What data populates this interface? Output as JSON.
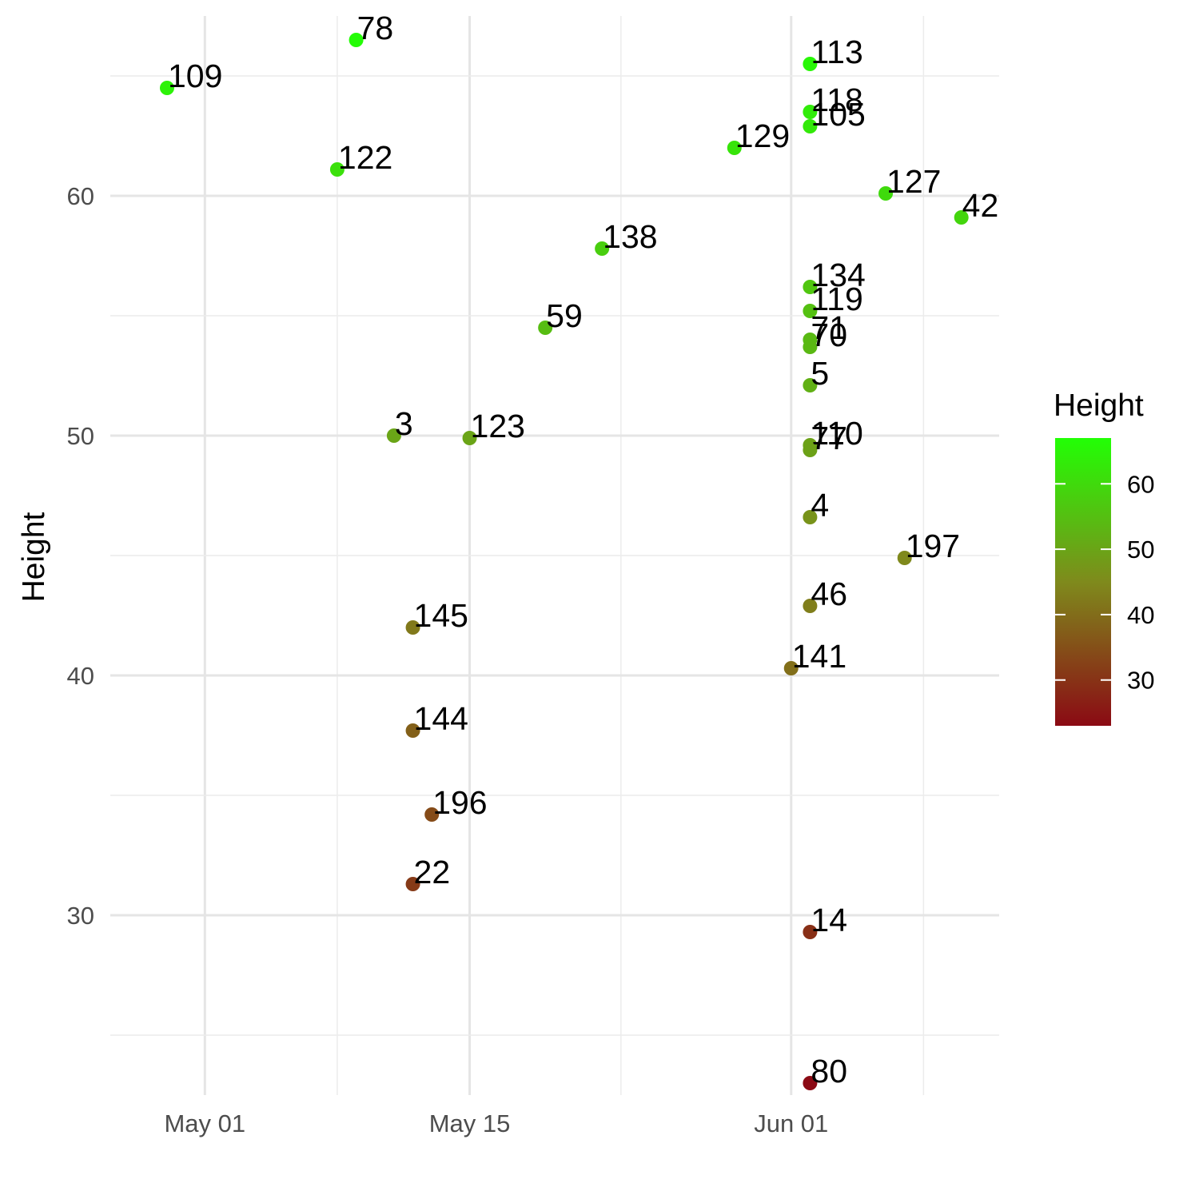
{
  "chart_data": {
    "type": "scatter",
    "title": "",
    "xlabel": "",
    "ylabel": "Height",
    "x_ticks": [
      "May 01",
      "May 15",
      "Jun 01"
    ],
    "y_ticks": [
      30,
      40,
      50,
      60
    ],
    "xlim": [
      "2024-04-26",
      "2024-06-12"
    ],
    "ylim": [
      22.5,
      67.5
    ],
    "grid": true,
    "legend": {
      "title": "Height",
      "position": "right",
      "ticks": [
        30,
        40,
        50,
        60
      ],
      "range": [
        23,
        67
      ],
      "colors": {
        "low": "#8b0a14",
        "mid": "#7f8a1c",
        "high": "#22ff05"
      }
    },
    "points": [
      {
        "id": "109",
        "date": "2024-04-29",
        "height": 64.5
      },
      {
        "id": "78",
        "date": "2024-05-09",
        "height": 66.5
      },
      {
        "id": "122",
        "date": "2024-05-08",
        "height": 61.1
      },
      {
        "id": "3",
        "date": "2024-05-11",
        "height": 50.0
      },
      {
        "id": "123",
        "date": "2024-05-15",
        "height": 49.9
      },
      {
        "id": "145",
        "date": "2024-05-12",
        "height": 42.0
      },
      {
        "id": "144",
        "date": "2024-05-12",
        "height": 37.7
      },
      {
        "id": "196",
        "date": "2024-05-13",
        "height": 34.2
      },
      {
        "id": "22",
        "date": "2024-05-12",
        "height": 31.3
      },
      {
        "id": "59",
        "date": "2024-05-19",
        "height": 54.5
      },
      {
        "id": "138",
        "date": "2024-05-22",
        "height": 57.8
      },
      {
        "id": "129",
        "date": "2024-05-29",
        "height": 62.0
      },
      {
        "id": "141",
        "date": "2024-06-01",
        "height": 40.3
      },
      {
        "id": "113",
        "date": "2024-06-02",
        "height": 65.5
      },
      {
        "id": "118",
        "date": "2024-06-02",
        "height": 63.5
      },
      {
        "id": "105",
        "date": "2024-06-02",
        "height": 62.9
      },
      {
        "id": "134",
        "date": "2024-06-02",
        "height": 56.2
      },
      {
        "id": "119",
        "date": "2024-06-02",
        "height": 55.2
      },
      {
        "id": "71",
        "date": "2024-06-02",
        "height": 54.0
      },
      {
        "id": "70",
        "date": "2024-06-02",
        "height": 53.7
      },
      {
        "id": "5",
        "date": "2024-06-02",
        "height": 52.1
      },
      {
        "id": "110",
        "date": "2024-06-02",
        "height": 49.6
      },
      {
        "id": "77",
        "date": "2024-06-02",
        "height": 49.4
      },
      {
        "id": "4",
        "date": "2024-06-02",
        "height": 46.6
      },
      {
        "id": "46",
        "date": "2024-06-02",
        "height": 42.9
      },
      {
        "id": "14",
        "date": "2024-06-02",
        "height": 29.3
      },
      {
        "id": "80",
        "date": "2024-06-02",
        "height": 23.0
      },
      {
        "id": "127",
        "date": "2024-06-06",
        "height": 60.1
      },
      {
        "id": "197",
        "date": "2024-06-07",
        "height": 44.9
      },
      {
        "id": "42",
        "date": "2024-06-10",
        "height": 59.1
      }
    ]
  }
}
